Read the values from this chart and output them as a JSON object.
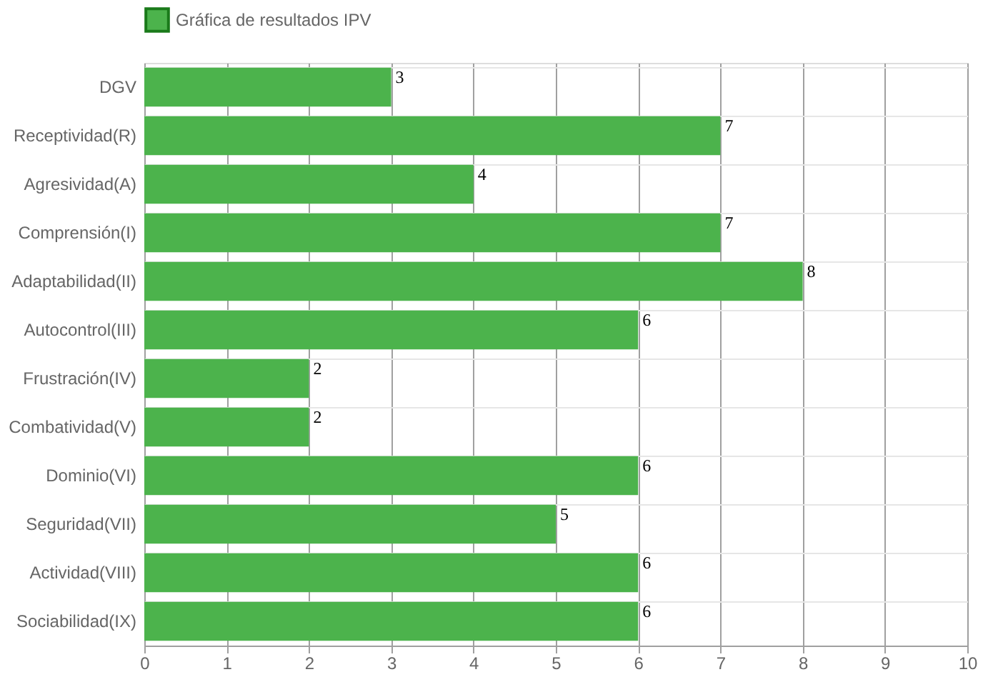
{
  "chart_data": {
    "type": "bar",
    "orientation": "horizontal",
    "categories": [
      "DGV",
      "Receptividad(R)",
      "Agresividad(A)",
      "Comprensión(I)",
      "Adaptabilidad(II)",
      "Autocontrol(III)",
      "Frustración(IV)",
      "Combatividad(V)",
      "Dominio(VI)",
      "Seguridad(VII)",
      "Actividad(VIII)",
      "Sociabilidad(IX)"
    ],
    "series": [
      {
        "name": "Gráfica de resultados IPV",
        "color": "#4cb34c",
        "values": [
          3,
          7,
          4,
          7,
          8,
          6,
          2,
          2,
          6,
          5,
          6,
          6
        ]
      }
    ],
    "xlim": [
      0,
      10
    ],
    "xticks": [
      0,
      1,
      2,
      3,
      4,
      5,
      6,
      7,
      8,
      9,
      10
    ],
    "grid": true,
    "legend": "top",
    "data_labels": true
  }
}
